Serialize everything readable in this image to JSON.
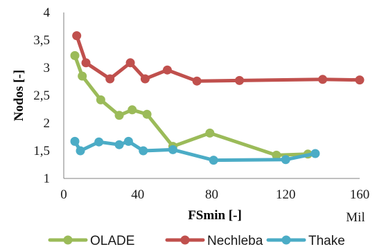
{
  "chart_data": {
    "type": "line",
    "xlabel": "FSmin [-]",
    "ylabel": "Nodos [-]",
    "x_unit_note": "Mil",
    "xlim": [
      0,
      160
    ],
    "ylim": [
      1,
      4
    ],
    "x_ticks": [
      "0",
      "40",
      "80",
      "120",
      "160"
    ],
    "y_ticks": [
      "1",
      "1,5",
      "2",
      "2,5",
      "3",
      "3,5",
      "4"
    ],
    "grid": false,
    "legend_position": "bottom",
    "series": [
      {
        "name": "OLADE",
        "color": "#9bbb59",
        "points": [
          [
            6,
            3.22
          ],
          [
            10,
            2.85
          ],
          [
            20,
            2.42
          ],
          [
            30,
            2.14
          ],
          [
            37,
            2.24
          ],
          [
            45,
            2.16
          ],
          [
            59,
            1.58
          ],
          [
            79,
            1.82
          ],
          [
            115,
            1.42
          ],
          [
            132,
            1.44
          ]
        ]
      },
      {
        "name": "Nechleba",
        "color": "#c0504d",
        "points": [
          [
            7,
            3.58
          ],
          [
            12,
            3.09
          ],
          [
            25,
            2.8
          ],
          [
            36,
            3.09
          ],
          [
            44,
            2.8
          ],
          [
            56,
            2.96
          ],
          [
            72,
            2.76
          ],
          [
            95,
            2.77
          ],
          [
            140,
            2.79
          ],
          [
            160,
            2.78
          ]
        ]
      },
      {
        "name": "Thake",
        "color": "#4bacc6",
        "points": [
          [
            6,
            1.67
          ],
          [
            9,
            1.5
          ],
          [
            19,
            1.66
          ],
          [
            30,
            1.61
          ],
          [
            35,
            1.67
          ],
          [
            43,
            1.5
          ],
          [
            59,
            1.52
          ],
          [
            81,
            1.33
          ],
          [
            120,
            1.34
          ],
          [
            136,
            1.45
          ]
        ]
      }
    ]
  }
}
